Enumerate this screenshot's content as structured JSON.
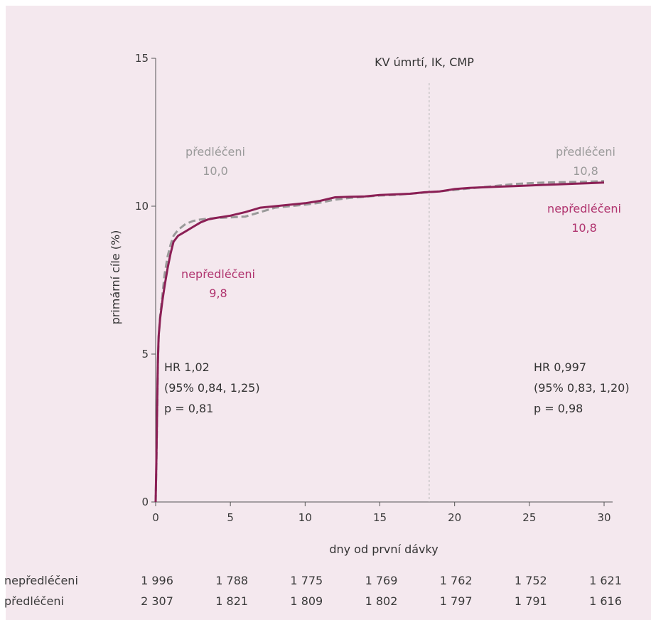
{
  "chart_data": {
    "type": "line",
    "title": "KV úmrtí, IK, CMP",
    "xlabel": "dny od první dávky",
    "ylabel": "primární cíle (%)",
    "xlim": [
      0,
      30
    ],
    "ylim": [
      0,
      15
    ],
    "x_ticks": [
      0,
      5,
      10,
      15,
      20,
      25,
      30
    ],
    "y_ticks": [
      0,
      5,
      10,
      15
    ],
    "landmark_x": 18.3,
    "colors": {
      "untreated": "#8b1f55",
      "pretreated": "#9a9a9a",
      "untreated_label": "#b0336e",
      "pretreated_label": "#9a9a9a"
    },
    "series": [
      {
        "name": "nepředléčeni",
        "style": "solid",
        "x": [
          0,
          0.05,
          0.1,
          0.15,
          0.2,
          0.3,
          0.45,
          0.6,
          0.8,
          1.0,
          1.2,
          1.5,
          2.0,
          2.5,
          3.0,
          3.5,
          4.0,
          5.0,
          6.0,
          7.0,
          8.0,
          9.0,
          10.0,
          11.0,
          12.0,
          13.0,
          14.0,
          15.0,
          16.0,
          17.0,
          18.0,
          19.0,
          20.0,
          21.0,
          22.0,
          23.0,
          24.0,
          25.0,
          26.0,
          27.0,
          28.0,
          29.0,
          30.0
        ],
        "y": [
          0,
          1.5,
          3.2,
          4.8,
          5.6,
          6.2,
          6.8,
          7.3,
          7.9,
          8.4,
          8.8,
          9.0,
          9.15,
          9.3,
          9.45,
          9.55,
          9.6,
          9.68,
          9.8,
          9.95,
          10.0,
          10.05,
          10.1,
          10.18,
          10.3,
          10.32,
          10.33,
          10.38,
          10.4,
          10.42,
          10.47,
          10.5,
          10.58,
          10.62,
          10.64,
          10.66,
          10.68,
          10.7,
          10.72,
          10.74,
          10.76,
          10.78,
          10.8
        ]
      },
      {
        "name": "předléčeni",
        "style": "dashed",
        "x": [
          0,
          0.05,
          0.1,
          0.15,
          0.2,
          0.3,
          0.45,
          0.6,
          0.8,
          1.0,
          1.2,
          1.5,
          2.0,
          2.5,
          3.0,
          3.5,
          4.0,
          5.0,
          6.0,
          7.0,
          8.0,
          9.0,
          10.0,
          11.0,
          12.0,
          13.0,
          14.0,
          15.0,
          16.0,
          17.0,
          18.0,
          19.0,
          20.0,
          21.0,
          22.0,
          23.0,
          24.0,
          25.0,
          26.0,
          27.0,
          28.0,
          29.0,
          30.0
        ],
        "y": [
          0,
          1.3,
          3.0,
          4.7,
          5.5,
          6.3,
          7.0,
          7.7,
          8.3,
          8.7,
          9.0,
          9.2,
          9.4,
          9.5,
          9.55,
          9.58,
          9.6,
          9.62,
          9.65,
          9.8,
          9.95,
          10.0,
          10.05,
          10.12,
          10.22,
          10.28,
          10.32,
          10.36,
          10.38,
          10.42,
          10.46,
          10.5,
          10.55,
          10.6,
          10.65,
          10.7,
          10.75,
          10.78,
          10.8,
          10.81,
          10.82,
          10.83,
          10.85
        ]
      }
    ],
    "annotations": {
      "pre_left_name": "předléčeni",
      "pre_left_value": "10,0",
      "untr_left_name": "nepředléčeni",
      "untr_left_value": "9,8",
      "pre_right_name": "předléčeni",
      "pre_right_value": "10,8",
      "untr_right_name": "nepředléčeni",
      "untr_right_value": "10,8",
      "hr_left": [
        "HR 1,02",
        "(95% 0,84, 1,25)",
        "p = 0,81"
      ],
      "hr_right": [
        "HR 0,997",
        "(95% 0,83, 1,20)",
        "p = 0,98"
      ]
    },
    "risk_table": {
      "rows": [
        {
          "label": "nepředléčeni",
          "values": [
            "1 996",
            "1 788",
            "1 775",
            "1 769",
            "1 762",
            "1 752",
            "1 621"
          ]
        },
        {
          "label": "předléčeni",
          "values": [
            "2 307",
            "1 821",
            "1 809",
            "1 802",
            "1 797",
            "1 791",
            "1 616"
          ]
        }
      ]
    }
  }
}
